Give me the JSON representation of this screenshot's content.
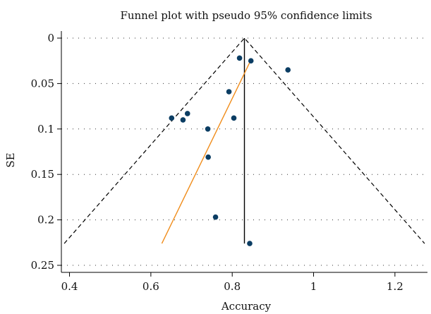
{
  "chart_data": {
    "type": "scatter",
    "title": "Funnel plot with pseudo 95% confidence limits",
    "xlabel": "Accuracy",
    "ylabel": "SE",
    "xlim": [
      0.38,
      1.28
    ],
    "ylim": [
      0,
      0.25
    ],
    "y_reversed": true,
    "x_ticks": [
      0.4,
      0.6,
      0.8,
      1,
      1.2
    ],
    "x_tick_labels": [
      "0.4",
      "0.6",
      "0.8",
      "1",
      "1.2"
    ],
    "y_ticks": [
      0,
      0.05,
      0.1,
      0.15,
      0.2,
      0.25
    ],
    "y_tick_labels": [
      "0",
      "0.05",
      "0.1",
      "0.15",
      "0.2",
      "0.25"
    ],
    "grid": "horizontal dotted",
    "pooled_estimate": 0.83,
    "funnel_se_max": 0.226,
    "egger_line": {
      "x": [
        0.627,
        0.845
      ],
      "y": [
        0.226,
        0.025
      ]
    },
    "points": [
      {
        "x": 0.818,
        "y": 0.022
      },
      {
        "x": 0.846,
        "y": 0.025
      },
      {
        "x": 0.937,
        "y": 0.035
      },
      {
        "x": 0.792,
        "y": 0.059
      },
      {
        "x": 0.651,
        "y": 0.088
      },
      {
        "x": 0.679,
        "y": 0.09
      },
      {
        "x": 0.69,
        "y": 0.083
      },
      {
        "x": 0.804,
        "y": 0.088
      },
      {
        "x": 0.74,
        "y": 0.1
      },
      {
        "x": 0.741,
        "y": 0.131
      },
      {
        "x": 0.759,
        "y": 0.197
      },
      {
        "x": 0.843,
        "y": 0.226
      }
    ],
    "colors": {
      "points": "#0b3d63",
      "egger": "#f08c1a",
      "funnel": "#000000"
    }
  }
}
